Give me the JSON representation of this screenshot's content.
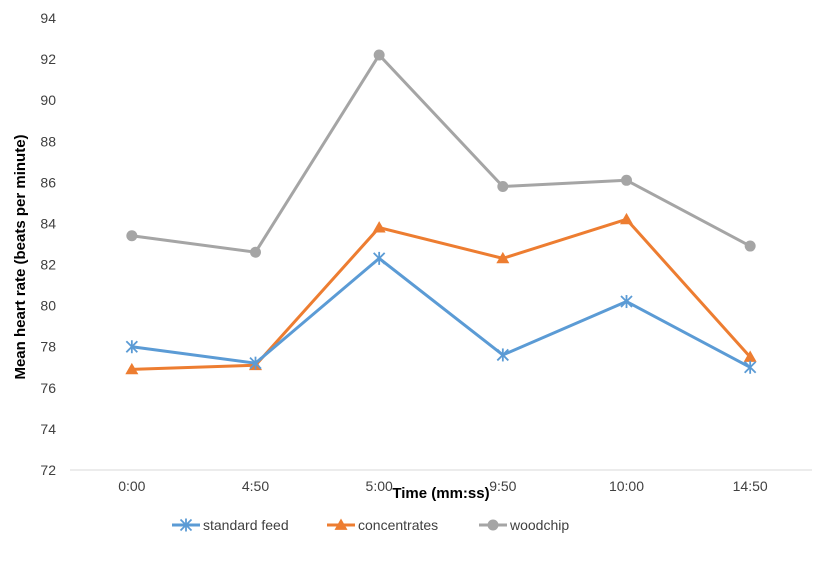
{
  "chart_data": {
    "type": "line",
    "categories": [
      "0:00",
      "4:50",
      "5:00",
      "9:50",
      "10:00",
      "14:50"
    ],
    "xlabel": "Time (mm:ss)",
    "ylabel": "Mean heart rate (beats per minute)",
    "ylim": [
      72,
      94
    ],
    "yticks": [
      72,
      74,
      76,
      78,
      80,
      82,
      84,
      86,
      88,
      90,
      92,
      94
    ],
    "grid": false,
    "legend": "bottom",
    "series": [
      {
        "name": "standard feed",
        "color": "#5B9BD5",
        "marker": "asterisk",
        "values": [
          78.0,
          77.2,
          82.3,
          77.6,
          80.2,
          77.0
        ]
      },
      {
        "name": "concentrates",
        "color": "#ED7D31",
        "marker": "triangle",
        "values": [
          76.9,
          77.1,
          83.8,
          82.3,
          84.2,
          77.5
        ]
      },
      {
        "name": "woodchip",
        "color": "#A5A5A5",
        "marker": "circle",
        "values": [
          83.4,
          82.6,
          92.2,
          85.8,
          86.1,
          82.9
        ]
      }
    ]
  }
}
